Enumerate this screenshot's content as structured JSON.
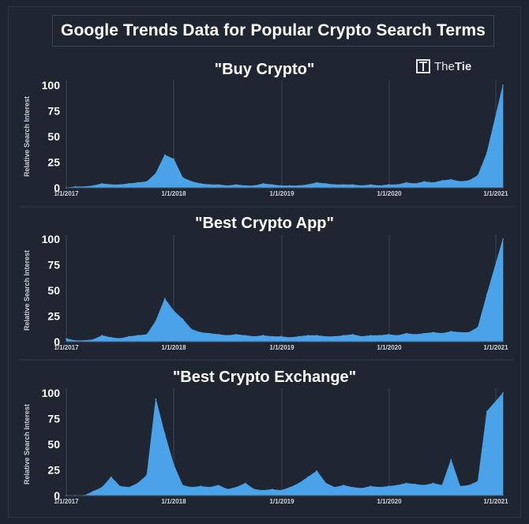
{
  "header": {
    "title": "Google Trends Data for Popular Crypto Search Terms"
  },
  "logo": {
    "brand": "TheTie",
    "prefix": "The",
    "suffix": "Tie"
  },
  "colors": {
    "background": "#1f2632",
    "fill": "#4aa3e8",
    "grid": "#3a4454",
    "text": "#ffffff",
    "tick_text": "#d0d4da"
  },
  "chart_data": [
    {
      "type": "area",
      "title": "\"Buy Crypto\"",
      "ylabel": "Relative Search Interest",
      "xlabel": "",
      "x_ticks": [
        "1/1/2017",
        "1/1/2018",
        "1/1/2019",
        "1/1/2020",
        "1/1/2021"
      ],
      "y_ticks": [
        0,
        25,
        50,
        75,
        100
      ],
      "xlim": [
        "2017-01-01",
        "2021-01-10"
      ],
      "ylim": [
        0,
        100
      ],
      "grid": true,
      "x": [
        "2017-01",
        "2017-02",
        "2017-03",
        "2017-04",
        "2017-05",
        "2017-06",
        "2017-07",
        "2017-08",
        "2017-09",
        "2017-10",
        "2017-11",
        "2017-12",
        "2018-01",
        "2018-02",
        "2018-03",
        "2018-04",
        "2018-05",
        "2018-06",
        "2018-07",
        "2018-08",
        "2018-09",
        "2018-10",
        "2018-11",
        "2018-12",
        "2019-01",
        "2019-02",
        "2019-03",
        "2019-04",
        "2019-05",
        "2019-06",
        "2019-07",
        "2019-08",
        "2019-09",
        "2019-10",
        "2019-11",
        "2019-12",
        "2020-01",
        "2020-02",
        "2020-03",
        "2020-04",
        "2020-05",
        "2020-06",
        "2020-07",
        "2020-08",
        "2020-09",
        "2020-10",
        "2020-11",
        "2020-12",
        "2021-01"
      ],
      "values": [
        0,
        1,
        1,
        2,
        4,
        3,
        3,
        4,
        5,
        6,
        14,
        32,
        28,
        10,
        6,
        4,
        3,
        3,
        2,
        3,
        2,
        2,
        4,
        3,
        2,
        2,
        2,
        3,
        5,
        4,
        3,
        3,
        3,
        2,
        3,
        2,
        3,
        3,
        5,
        4,
        6,
        5,
        7,
        8,
        6,
        7,
        12,
        34,
        100
      ]
    },
    {
      "type": "area",
      "title": "\"Best Crypto App\"",
      "ylabel": "Relative Search Interest",
      "xlabel": "",
      "x_ticks": [
        "1/1/2017",
        "1/1/2018",
        "1/1/2019",
        "1/1/2020",
        "1/1/2021"
      ],
      "y_ticks": [
        0,
        25,
        50,
        75,
        100
      ],
      "xlim": [
        "2017-01-01",
        "2021-01-10"
      ],
      "ylim": [
        0,
        100
      ],
      "grid": true,
      "x": [
        "2017-01",
        "2017-02",
        "2017-03",
        "2017-04",
        "2017-05",
        "2017-06",
        "2017-07",
        "2017-08",
        "2017-09",
        "2017-10",
        "2017-11",
        "2017-12",
        "2018-01",
        "2018-02",
        "2018-03",
        "2018-04",
        "2018-05",
        "2018-06",
        "2018-07",
        "2018-08",
        "2018-09",
        "2018-10",
        "2018-11",
        "2018-12",
        "2019-01",
        "2019-02",
        "2019-03",
        "2019-04",
        "2019-05",
        "2019-06",
        "2019-07",
        "2019-08",
        "2019-09",
        "2019-10",
        "2019-11",
        "2019-12",
        "2020-01",
        "2020-02",
        "2020-03",
        "2020-04",
        "2020-05",
        "2020-06",
        "2020-07",
        "2020-08",
        "2020-09",
        "2020-10",
        "2020-11",
        "2020-12",
        "2021-01"
      ],
      "values": [
        3,
        1,
        1,
        2,
        6,
        4,
        3,
        5,
        6,
        7,
        20,
        42,
        30,
        22,
        12,
        9,
        8,
        7,
        6,
        7,
        6,
        5,
        6,
        5,
        5,
        4,
        5,
        6,
        6,
        5,
        5,
        6,
        7,
        5,
        6,
        6,
        7,
        6,
        8,
        7,
        8,
        9,
        8,
        10,
        9,
        9,
        14,
        46,
        100
      ]
    },
    {
      "type": "area",
      "title": "\"Best Crypto Exchange\"",
      "ylabel": "Relative Search Interest",
      "xlabel": "",
      "x_ticks": [
        "1/1/2017",
        "1/1/2018",
        "1/1/2019",
        "1/1/2020",
        "1/1/2021"
      ],
      "y_ticks": [
        0,
        25,
        50,
        75,
        100
      ],
      "xlim": [
        "2017-01-01",
        "2021-01-10"
      ],
      "ylim": [
        0,
        100
      ],
      "grid": true,
      "x": [
        "2017-01",
        "2017-02",
        "2017-03",
        "2017-04",
        "2017-05",
        "2017-06",
        "2017-07",
        "2017-08",
        "2017-09",
        "2017-10",
        "2017-11",
        "2017-12",
        "2018-01",
        "2018-02",
        "2018-03",
        "2018-04",
        "2018-05",
        "2018-06",
        "2018-07",
        "2018-08",
        "2018-09",
        "2018-10",
        "2018-11",
        "2018-12",
        "2019-01",
        "2019-02",
        "2019-03",
        "2019-04",
        "2019-05",
        "2019-06",
        "2019-07",
        "2019-08",
        "2019-09",
        "2019-10",
        "2019-11",
        "2019-12",
        "2020-01",
        "2020-02",
        "2020-03",
        "2020-04",
        "2020-05",
        "2020-06",
        "2020-07",
        "2020-08",
        "2020-09",
        "2020-10",
        "2020-11",
        "2020-12",
        "2021-01"
      ],
      "values": [
        0,
        0,
        0,
        4,
        8,
        18,
        9,
        8,
        12,
        20,
        94,
        60,
        30,
        10,
        8,
        9,
        8,
        10,
        6,
        8,
        12,
        6,
        5,
        6,
        5,
        8,
        12,
        18,
        24,
        12,
        8,
        10,
        8,
        7,
        9,
        8,
        9,
        10,
        12,
        11,
        10,
        12,
        10,
        35,
        9,
        10,
        14,
        82,
        100
      ]
    }
  ]
}
